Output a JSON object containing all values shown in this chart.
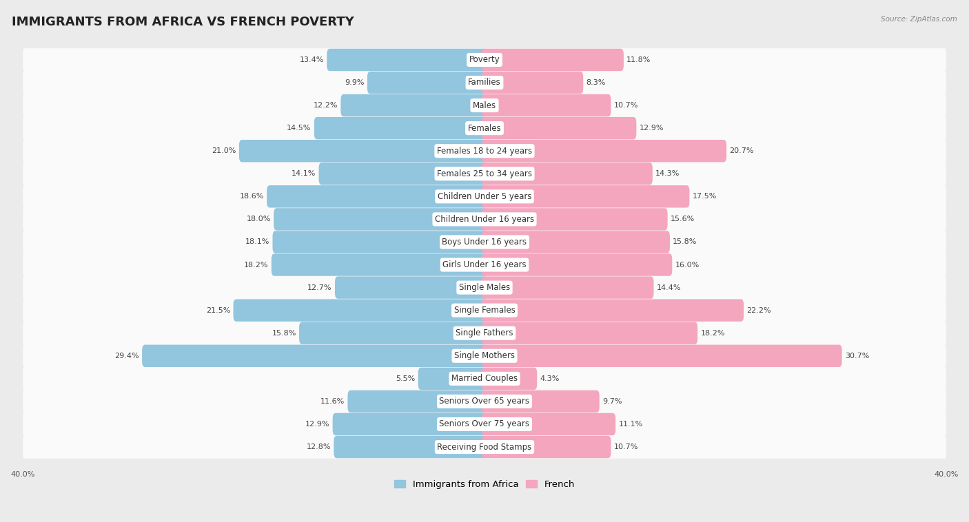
{
  "title": "IMMIGRANTS FROM AFRICA VS FRENCH POVERTY",
  "source": "Source: ZipAtlas.com",
  "categories": [
    "Poverty",
    "Families",
    "Males",
    "Females",
    "Females 18 to 24 years",
    "Females 25 to 34 years",
    "Children Under 5 years",
    "Children Under 16 years",
    "Boys Under 16 years",
    "Girls Under 16 years",
    "Single Males",
    "Single Females",
    "Single Fathers",
    "Single Mothers",
    "Married Couples",
    "Seniors Over 65 years",
    "Seniors Over 75 years",
    "Receiving Food Stamps"
  ],
  "africa_values": [
    13.4,
    9.9,
    12.2,
    14.5,
    21.0,
    14.1,
    18.6,
    18.0,
    18.1,
    18.2,
    12.7,
    21.5,
    15.8,
    29.4,
    5.5,
    11.6,
    12.9,
    12.8
  ],
  "french_values": [
    11.8,
    8.3,
    10.7,
    12.9,
    20.7,
    14.3,
    17.5,
    15.6,
    15.8,
    16.0,
    14.4,
    22.2,
    18.2,
    30.7,
    4.3,
    9.7,
    11.1,
    10.7
  ],
  "africa_color": "#92C5DE",
  "french_color": "#F4A6BE",
  "africa_label": "Immigrants from Africa",
  "french_label": "French",
  "xlim": 40.0,
  "bg_color": "#EBEBEB",
  "row_bg_color": "#FAFAFA",
  "title_fontsize": 13,
  "label_fontsize": 8.5,
  "value_fontsize": 8.0
}
